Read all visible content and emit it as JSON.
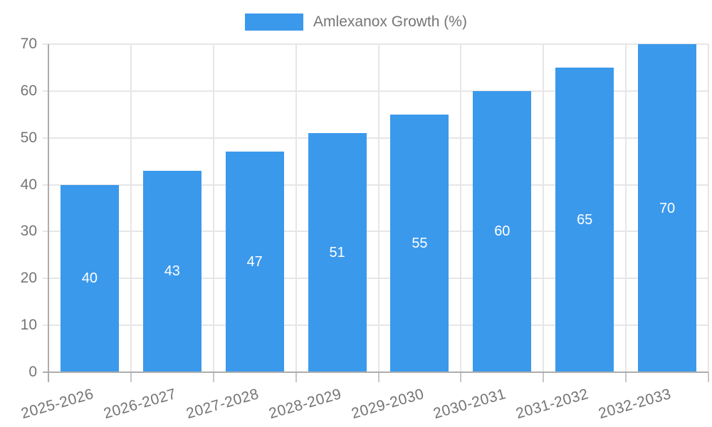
{
  "chart_data": {
    "type": "bar",
    "title": "",
    "legend": {
      "label": "Amlexanox Growth (%)",
      "position": "top"
    },
    "categories": [
      "2025-2026",
      "2026-2027",
      "2027-2028",
      "2028-2029",
      "2029-2030",
      "2030-2031",
      "2031-2032",
      "2032-2033"
    ],
    "values": [
      40,
      43,
      47,
      51,
      55,
      60,
      65,
      70
    ],
    "series": [
      {
        "name": "Amlexanox Growth (%)",
        "values": [
          40,
          43,
          47,
          51,
          55,
          60,
          65,
          70
        ]
      }
    ],
    "xlabel": "",
    "ylabel": "",
    "ylim": [
      0,
      70
    ],
    "yticks": [
      0,
      10,
      20,
      30,
      40,
      50,
      60,
      70
    ],
    "grid": true,
    "value_labels_inside_bars": true,
    "x_labels_rotated": true,
    "colors": {
      "bar": "#3b99ec",
      "value_label": "#ffffff",
      "axis_line": "#adadad",
      "gridline": "#e6e6e6",
      "tick": "#c6c6c6",
      "label_text": "#757575"
    }
  }
}
